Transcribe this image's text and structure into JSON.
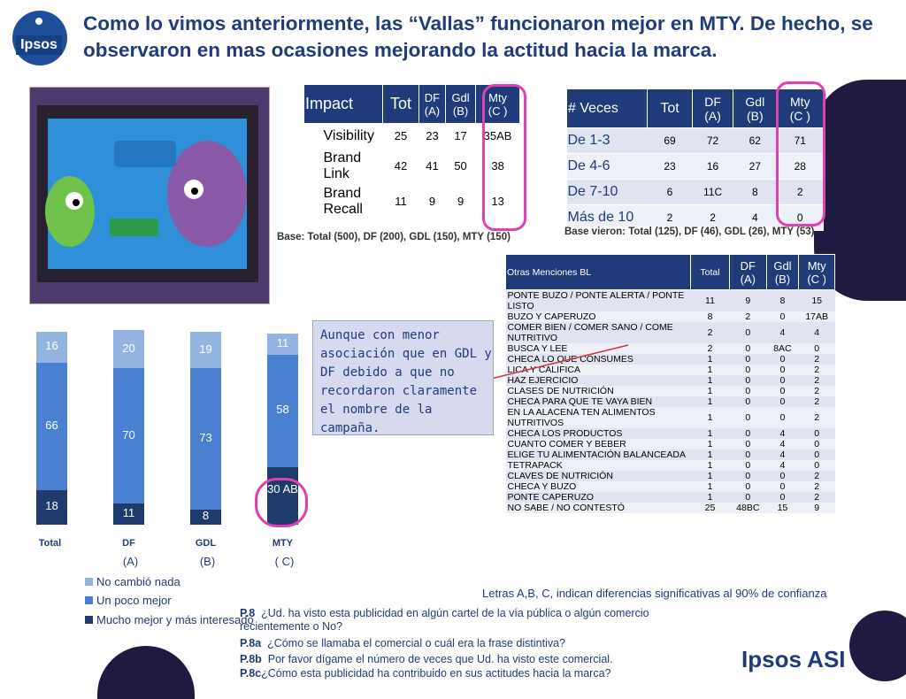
{
  "header": {
    "title": "Como lo vimos anteriormente, las “Vallas” funcionaron mejor en MTY. De hecho, se observaron en mas ocasiones mejorando la actitud hacia la marca.",
    "logo_text": "Ipsos",
    "brand_footer": "Ipsos ASI"
  },
  "impact_table": {
    "headers": [
      "Impact",
      "Tot",
      "DF\n(A)",
      "Gdl\n(B)",
      "Mty\n(C )"
    ],
    "rows": [
      {
        "label": "Visibility",
        "values": [
          "25",
          "23",
          "17",
          "35AB"
        ]
      },
      {
        "label": "Brand Link",
        "values": [
          "42",
          "41",
          "50",
          "38"
        ]
      },
      {
        "label": "Brand Recall",
        "values": [
          "11",
          "9",
          "9",
          "13"
        ]
      }
    ],
    "base": "Base: Total (500), DF (200), GDL (150), MTY (150)"
  },
  "veces_table": {
    "headers": [
      "# Veces",
      "Tot",
      "DF\n(A)",
      "Gdl\n(B)",
      "Mty\n(C )"
    ],
    "rows": [
      {
        "label": "De 1-3",
        "values": [
          "69",
          "72",
          "62",
          "71"
        ]
      },
      {
        "label": "De 4-6",
        "values": [
          "23",
          "16",
          "27",
          "28"
        ]
      },
      {
        "label": "De 7-10",
        "values": [
          "6",
          "11C",
          "8",
          "2"
        ]
      },
      {
        "label": "Más de 10",
        "values": [
          "2",
          "2",
          "4",
          "0"
        ]
      }
    ],
    "base": "Base vieron: Total (125), DF (46), GDL (26), MTY (53)"
  },
  "otras_table": {
    "headers": [
      "Otras Menciones BL",
      "Total",
      "DF\n(A)",
      "Gdl\n(B)",
      "Mty\n(C )"
    ],
    "rows": [
      {
        "label": "PONTE BUZO / PONTE ALERTA / PONTE LISTO",
        "values": [
          "11",
          "9",
          "8",
          "15"
        ]
      },
      {
        "label": "BUZO Y CAPERUZO",
        "values": [
          "8",
          "2",
          "0",
          "17AB"
        ]
      },
      {
        "label": "COMER BIEN / COMER SANO / COME NUTRITIVO",
        "values": [
          "2",
          "0",
          "4",
          "4"
        ]
      },
      {
        "label": "BUSCA Y LEE",
        "values": [
          "2",
          "0",
          "8AC",
          "0"
        ]
      },
      {
        "label": "CHECA LO QUE CONSUMES",
        "values": [
          "1",
          "0",
          "0",
          "2"
        ]
      },
      {
        "label": "LICA Y CALIFICA",
        "values": [
          "1",
          "0",
          "0",
          "2"
        ]
      },
      {
        "label": "HAZ EJERCICIO",
        "values": [
          "1",
          "0",
          "0",
          "2"
        ]
      },
      {
        "label": "CLASES DE NUTRICIÓN",
        "values": [
          "1",
          "0",
          "0",
          "2"
        ]
      },
      {
        "label": "CHECA PARA QUE TE VAYA BIEN",
        "values": [
          "1",
          "0",
          "0",
          "2"
        ]
      },
      {
        "label": "EN LA ALACENA TEN ALIMENTOS NUTRITIVOS",
        "values": [
          "1",
          "0",
          "0",
          "2"
        ]
      },
      {
        "label": "CHECA LOS PRODUCTOS",
        "values": [
          "1",
          "0",
          "4",
          "0"
        ]
      },
      {
        "label": "CUANTO COMER Y BEBER",
        "values": [
          "1",
          "0",
          "4",
          "0"
        ]
      },
      {
        "label": "ELIGE TU ALIMENTACIÓN BALANCEADA",
        "values": [
          "1",
          "0",
          "4",
          "0"
        ]
      },
      {
        "label": "TETRAPACK",
        "values": [
          "1",
          "0",
          "4",
          "0"
        ]
      },
      {
        "label": "CLAVES DE NUTRICIÓN",
        "values": [
          "1",
          "0",
          "0",
          "2"
        ]
      },
      {
        "label": "CHECA Y BUZO",
        "values": [
          "1",
          "0",
          "0",
          "2"
        ]
      },
      {
        "label": "PONTE CAPERUZO",
        "values": [
          "1",
          "0",
          "0",
          "2"
        ]
      },
      {
        "label": "NO SABE / NO CONTESTÓ",
        "values": [
          "25",
          "48BC",
          "15",
          "9"
        ]
      }
    ],
    "note": "Letras A,B, C, indican diferencias significativas al 90% de confianza"
  },
  "callout": {
    "text": "Aunque con menor asociación que en GDL y DF debido a que no recordaron claramente el nombre de la campaña."
  },
  "chart_data": {
    "type": "bar",
    "stacked": true,
    "categories": [
      "Total",
      "DF",
      "GDL",
      "MTY"
    ],
    "category_sublabels": [
      "",
      "(A)",
      "(B)",
      "( C)"
    ],
    "series": [
      {
        "name": "Mucho mejor y más interesado",
        "values": [
          18,
          11,
          8,
          30
        ],
        "labels": [
          "18",
          "11",
          "8",
          "30 AB"
        ],
        "color": "#1f3b6e"
      },
      {
        "name": "Un poco mejor",
        "values": [
          66,
          70,
          73,
          58
        ],
        "labels": [
          "66",
          "70",
          "73",
          "58"
        ],
        "color": "#4a80d0"
      },
      {
        "name": "No cambió nada",
        "values": [
          16,
          20,
          19,
          11
        ],
        "labels": [
          "16",
          "20",
          "19",
          "11"
        ],
        "color": "#93b4e0"
      }
    ],
    "ylim": [
      0,
      100
    ],
    "legend_position": "bottom-left"
  },
  "questions": [
    {
      "code": "P.8",
      "text": "¿Ud. ha visto esta publicidad en algún cartel de la vía pública o algún comercio recientemente o No?"
    },
    {
      "code": "P.8a",
      "text": "¿Cómo se llamaba el comercial o cuál era la frase distintiva?"
    },
    {
      "code": "P.8b",
      "text": "Por favor dígame el número de veces que Ud. ha visto este comercial."
    },
    {
      "code": "P.8c",
      "text": "¿Cómo esta publicidad ha contribuido en sus actitudes hacia la marca?"
    }
  ],
  "colors": {
    "accent": "#1f3b7a",
    "highlight": "#e040b0",
    "table_header": "#1f3b7a"
  }
}
